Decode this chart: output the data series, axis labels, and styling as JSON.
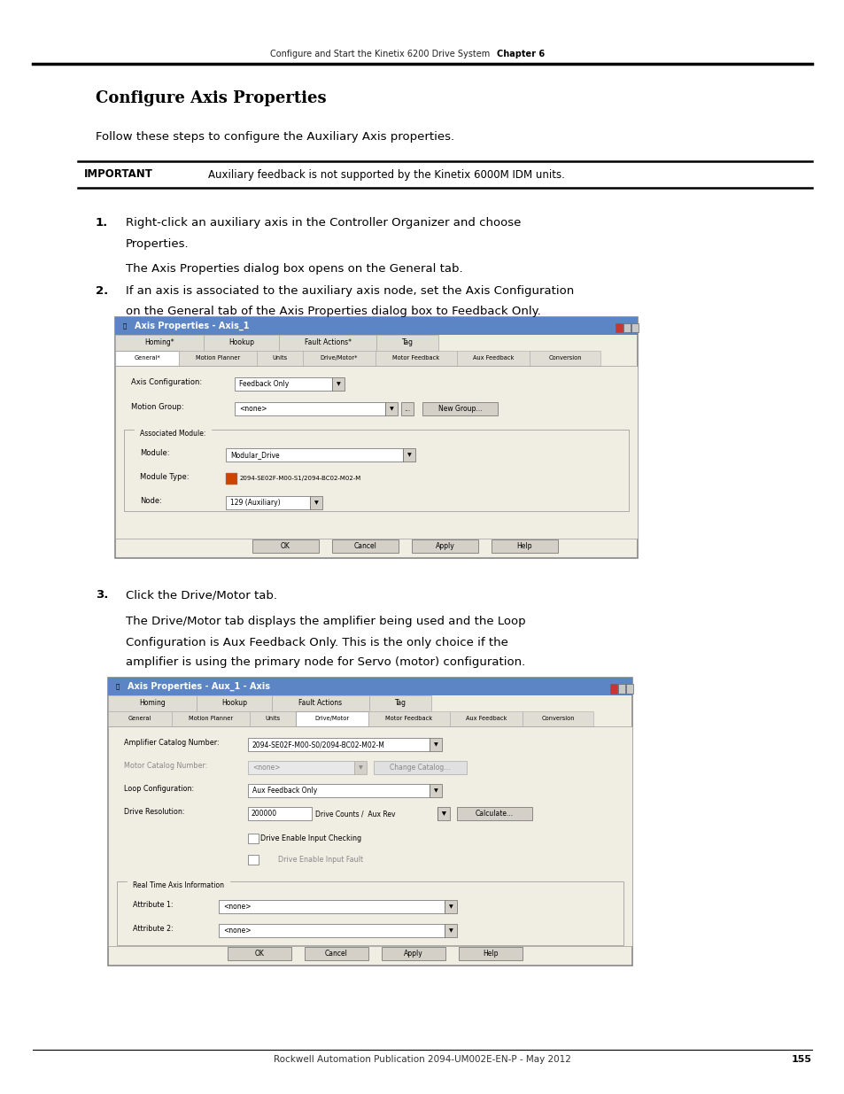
{
  "page_width": 9.54,
  "page_height": 12.35,
  "bg_color": "#ffffff",
  "header_text_left": "Configure and Start the Kinetix 6200 Drive System",
  "header_text_right": "Chapter 6",
  "footer_text_center": "Rockwell Automation Publication 2094-UM002E-EN-P - May 2012",
  "footer_page_num": "155",
  "title": "Configure Axis Properties",
  "intro_text": "Follow these steps to configure the Auxiliary Axis properties.",
  "important_label": "IMPORTANT",
  "important_text": "Auxiliary feedback is not supported by the Kinetix 6000M IDM units.",
  "step1_num": "1.",
  "step1_line1": "Right-click an auxiliary axis in the Controller Organizer and choose",
  "step1_line2": "Properties.",
  "step1_sub": "The Axis Properties dialog box opens on the General tab.",
  "step2_num": "2.",
  "step2_line1": "If an axis is associated to the auxiliary axis node, set the Axis Configuration",
  "step2_line2": "on the General tab of the Axis Properties dialog box to Feedback Only.",
  "step3_num": "3.",
  "step3_text": "Click the Drive/Motor tab.",
  "step3_sub1": "The Drive/Motor tab displays the amplifier being used and the Loop",
  "step3_sub2": "Configuration is Aux Feedback Only. This is the only choice if the",
  "step3_sub3": "amplifier is using the primary node for Servo (motor) configuration.",
  "dialog1_title": "Axis Properties - Axis_1",
  "dialog1_tabs_top": [
    "Homing*",
    "Hookup",
    "Fault Actions*",
    "Tag"
  ],
  "dialog1_tabs_bot": [
    "General*",
    "Motion Planner",
    "Units",
    "Drive/Motor*",
    "Motor Feedback",
    "Aux Feedback",
    "Conversion"
  ],
  "dialog1_group": "Associated Module:",
  "dialog2_title": "Axis Properties - Aux_1 - Axis",
  "dialog2_tabs_top": [
    "Homing",
    "Hookup",
    "Fault Actions",
    "Tag"
  ],
  "dialog2_tabs_bot": [
    "General",
    "Motion Planner",
    "Units",
    "Drive/Motor",
    "Motor Feedback",
    "Aux Feedback",
    "Conversion"
  ],
  "dialog2_checks": [
    "Drive Enable Input Checking",
    "Drive Enable Input Fault"
  ],
  "dialog2_group": "Real Time Axis Information",
  "title_color": "#000000",
  "header_line_color": "#000000",
  "important_line_color": "#000000",
  "dialog_title_color": "#5b85c5",
  "dialog_bg": "#ece9d8",
  "dialog_content_bg": "#d4d0c8",
  "tab_active_bg": "#ffffff",
  "tab_inactive_bg": "#e0ddd4"
}
